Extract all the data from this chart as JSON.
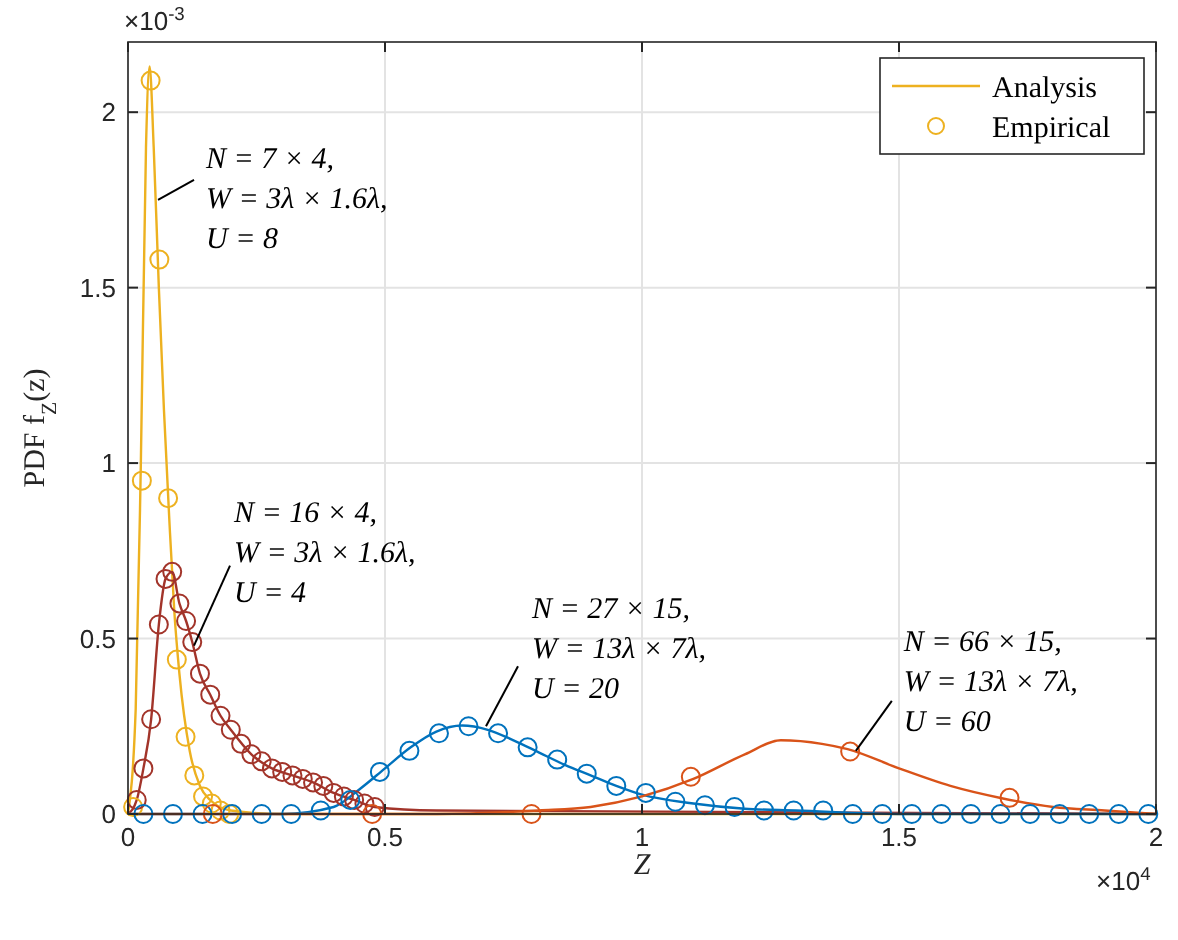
{
  "chart_data": {
    "type": "line",
    "xlabel": "Z",
    "ylabel": "PDF f$_{Z}$(z)",
    "xlim": [
      0,
      2
    ],
    "ylim": [
      0,
      2.2
    ],
    "xticks": [
      0,
      0.5,
      1,
      1.5,
      2
    ],
    "yticks": [
      0,
      0.5,
      1,
      1.5,
      2
    ],
    "grid": true,
    "legend": "top right",
    "series": [
      {
        "name": "Analysis",
        "color": "#edb120",
        "x": [
          0,
          0.015,
          0.025,
          0.035,
          0.042,
          0.05,
          0.06,
          0.07,
          0.08,
          0.09,
          0.1,
          0.12,
          0.14,
          0.16,
          0.2,
          0.3,
          2
        ],
        "values": [
          0,
          0.3,
          1,
          1.9,
          2.13,
          1.9,
          1.5,
          1.15,
          0.85,
          0.58,
          0.4,
          0.18,
          0.08,
          0.04,
          0.01,
          0,
          0
        ]
      },
      {
        "color": "#a2342a",
        "x": [
          0,
          0.017,
          0.03,
          0.045,
          0.06,
          0.073,
          0.086,
          0.1,
          0.113,
          0.125,
          0.14,
          0.16,
          0.18,
          0.2,
          0.24,
          0.28,
          0.32,
          0.36,
          0.4,
          0.44,
          0.48,
          0.6,
          2
        ],
        "values": [
          0,
          0.04,
          0.13,
          0.27,
          0.54,
          0.67,
          0.69,
          0.6,
          0.55,
          0.49,
          0.4,
          0.34,
          0.28,
          0.24,
          0.17,
          0.13,
          0.11,
          0.09,
          0.06,
          0.04,
          0.02,
          0.01,
          0
        ]
      },
      {
        "color": "#0072bd",
        "x": [
          0,
          0.3,
          0.4,
          0.45,
          0.5,
          0.55,
          0.6,
          0.65,
          0.7,
          0.75,
          0.8,
          0.85,
          0.9,
          0.95,
          1,
          1.1,
          1.2,
          1.3,
          1.5,
          2
        ],
        "values": [
          0,
          0,
          0.02,
          0.07,
          0.13,
          0.19,
          0.235,
          0.252,
          0.24,
          0.21,
          0.175,
          0.14,
          0.11,
          0.08,
          0.055,
          0.03,
          0.015,
          0.01,
          0,
          0
        ]
      },
      {
        "color": "#d95319",
        "x": [
          0,
          0.6,
          0.8,
          0.9,
          1,
          1.1,
          1.2,
          1.27,
          1.35,
          1.4,
          1.5,
          1.6,
          1.7,
          1.8,
          1.9,
          2
        ],
        "values": [
          0,
          0,
          0.01,
          0.02,
          0.05,
          0.1,
          0.17,
          0.21,
          0.2,
          0.185,
          0.13,
          0.08,
          0.045,
          0.02,
          0.01,
          0
        ]
      },
      {
        "type": "scatter",
        "name": "Empirical",
        "color": "#edb120",
        "marker": "circle",
        "x": [
          0.01,
          0.027,
          0.044,
          0.061,
          0.078,
          0.095,
          0.112,
          0.129,
          0.146,
          0.163,
          0.18,
          0.197
        ],
        "values": [
          0.02,
          0.95,
          2.09,
          1.58,
          0.9,
          0.44,
          0.22,
          0.11,
          0.05,
          0.03,
          0.01,
          0
        ]
      },
      {
        "type": "scatter",
        "color": "#a2342a",
        "marker": "circle",
        "x": [
          0.017,
          0.03,
          0.045,
          0.06,
          0.073,
          0.086,
          0.1,
          0.113,
          0.125,
          0.14,
          0.16,
          0.18,
          0.2,
          0.22,
          0.24,
          0.26,
          0.28,
          0.3,
          0.32,
          0.34,
          0.36,
          0.38,
          0.4,
          0.42,
          0.44,
          0.46,
          0.48
        ],
        "values": [
          0.04,
          0.13,
          0.27,
          0.54,
          0.67,
          0.69,
          0.6,
          0.55,
          0.49,
          0.4,
          0.34,
          0.28,
          0.24,
          0.2,
          0.17,
          0.15,
          0.13,
          0.12,
          0.11,
          0.1,
          0.09,
          0.08,
          0.06,
          0.05,
          0.04,
          0.03,
          0.02
        ]
      },
      {
        "type": "scatter",
        "color": "#0072bd",
        "marker": "circle",
        "x": [
          0.03,
          0.0875,
          0.145,
          0.2025,
          0.26,
          0.3175,
          0.375,
          0.4325,
          0.49,
          0.5475,
          0.605,
          0.6625,
          0.72,
          0.7775,
          0.835,
          0.8925,
          0.95,
          1.0075,
          1.065,
          1.1225,
          1.18,
          1.2375,
          1.295,
          1.3525,
          1.41,
          1.4675,
          1.525,
          1.5825,
          1.64,
          1.6975,
          1.755,
          1.8125,
          1.87,
          1.9275,
          1.985
        ],
        "values": [
          0,
          0,
          0,
          0,
          0,
          0,
          0.01,
          0.04,
          0.12,
          0.18,
          0.23,
          0.25,
          0.23,
          0.19,
          0.155,
          0.115,
          0.08,
          0.06,
          0.035,
          0.025,
          0.02,
          0.01,
          0.01,
          0.01,
          0,
          0,
          0,
          0,
          0,
          0,
          0,
          0,
          0,
          0,
          0
        ]
      },
      {
        "type": "scatter",
        "color": "#d95319",
        "marker": "circle",
        "x": [
          0.165,
          0.475,
          0.785,
          1.095,
          1.405,
          1.715
        ],
        "values": [
          0,
          0,
          0,
          0.106,
          0.178,
          0.046
        ]
      }
    ],
    "annotations": [
      {
        "text": "N = 7 × 4,\nW = 3λ × 1.6λ,\nU = 8",
        "x": 0.0584,
        "y": 1.75
      },
      {
        "text": "N = 16 × 4,\nW = 3λ × 1.6λ,\nU = 4",
        "x": 0.1284,
        "y": 0.48
      },
      {
        "text": "N = 27 × 15,\nW = 13λ × 7λ,\nU = 20",
        "x": 0.6965,
        "y": 0.25
      },
      {
        "text": "N = 66 × 15,\nW = 13λ × 7λ,\nU = 60",
        "x": 1.416,
        "y": 0.18
      },
      "×10$^{-3}$",
      "×10$^{4}$"
    ]
  }
}
